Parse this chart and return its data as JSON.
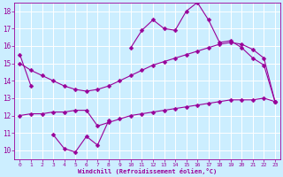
{
  "xlabel": "Windchill (Refroidissement éolien,°C)",
  "x_hours": [
    0,
    1,
    2,
    3,
    4,
    5,
    6,
    7,
    8,
    9,
    10,
    11,
    12,
    13,
    14,
    15,
    16,
    17,
    18,
    19,
    20,
    21,
    22,
    23
  ],
  "curve_top": [
    15.5,
    13.7,
    null,
    10.9,
    10.1,
    9.9,
    10.8,
    10.3,
    11.7,
    null,
    15.9,
    16.9,
    17.5,
    17.0,
    16.9,
    18.0,
    18.5,
    17.5,
    16.2,
    16.3,
    15.9,
    15.3,
    14.9,
    12.8
  ],
  "curve_mid": [
    15.0,
    14.6,
    14.3,
    14.0,
    13.7,
    13.5,
    13.4,
    13.5,
    13.7,
    14.0,
    14.3,
    14.6,
    14.9,
    15.1,
    15.3,
    15.5,
    15.7,
    15.9,
    16.1,
    16.2,
    16.1,
    15.8,
    15.3,
    12.8
  ],
  "curve_low": [
    12.0,
    12.1,
    12.1,
    12.2,
    12.2,
    12.3,
    12.3,
    11.4,
    11.6,
    11.8,
    12.0,
    12.1,
    12.2,
    12.3,
    12.4,
    12.5,
    12.6,
    12.7,
    12.8,
    12.9,
    12.9,
    12.9,
    13.0,
    12.8
  ],
  "ylim": [
    9.5,
    18.5
  ],
  "yticks": [
    10,
    11,
    12,
    13,
    14,
    15,
    16,
    17,
    18
  ],
  "color": "#990099",
  "bg_color": "#cceeff",
  "grid_color": "#ffffff",
  "markersize": 2.5,
  "linewidth": 0.8
}
